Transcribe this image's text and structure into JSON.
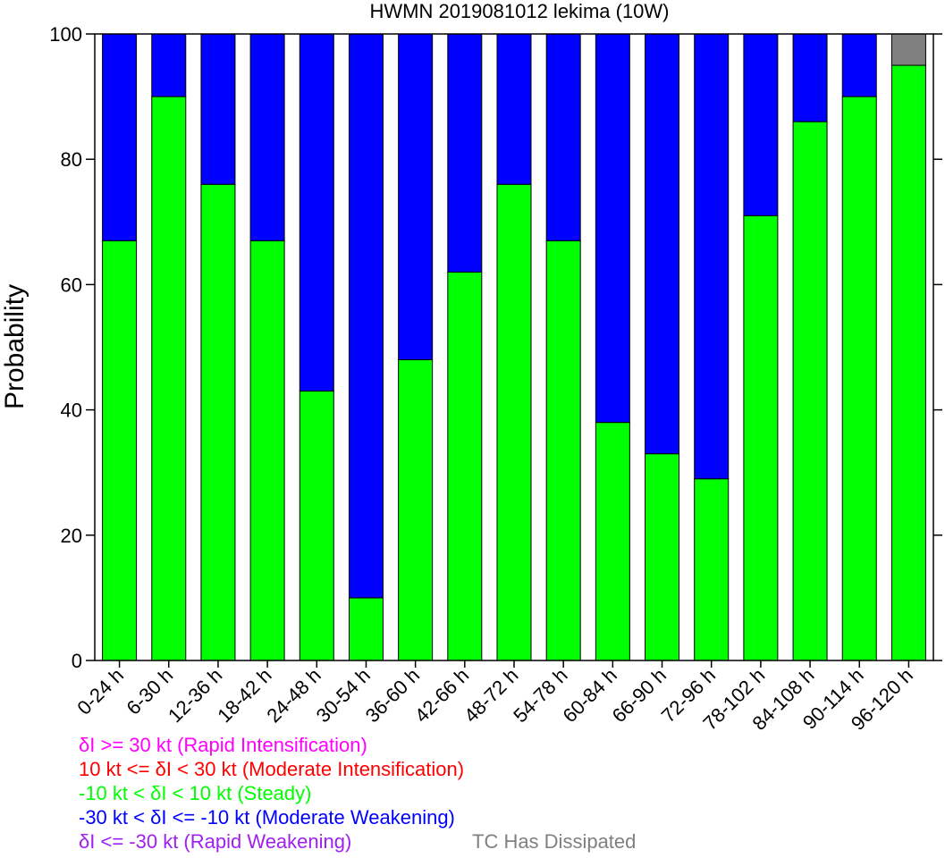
{
  "chart_data": {
    "type": "bar",
    "stacked": true,
    "title": "HWMN 2019081012 lekima (10W)",
    "ylabel": "Probability",
    "xlabel": "",
    "ylim": [
      0,
      100
    ],
    "yticks": [
      0,
      20,
      40,
      60,
      80,
      100
    ],
    "categories": [
      "0-24 h",
      "6-30 h",
      "12-36 h",
      "18-42 h",
      "24-48 h",
      "30-54 h",
      "36-60 h",
      "42-66 h",
      "48-72 h",
      "54-78 h",
      "60-84 h",
      "66-90 h",
      "72-96 h",
      "78-102 h",
      "84-108 h",
      "90-114 h",
      "96-120 h"
    ],
    "series": [
      {
        "name": "-10 kt < δI < 10 kt (Steady)",
        "color": "#00ff00",
        "values": [
          67,
          90,
          76,
          67,
          43,
          10,
          48,
          62,
          76,
          67,
          38,
          33,
          29,
          71,
          86,
          90,
          95
        ]
      },
      {
        "name": "-30 kt < δI <= -10 kt (Moderate Weakening)",
        "color": "#0000ff",
        "values": [
          33,
          10,
          24,
          33,
          57,
          90,
          52,
          38,
          24,
          33,
          62,
          67,
          71,
          29,
          14,
          10,
          0
        ]
      },
      {
        "name": "TC Has Dissipated",
        "color": "#808080",
        "values": [
          0,
          0,
          0,
          0,
          0,
          0,
          0,
          0,
          0,
          0,
          0,
          0,
          0,
          0,
          0,
          0,
          5
        ]
      }
    ],
    "legend_placement": "bottom",
    "grid": false
  },
  "legend": {
    "rapid_intensification": {
      "label": "δI >= 30 kt (Rapid Intensification)",
      "color": "#ff00ff"
    },
    "moderate_intensification": {
      "label": "10 kt <= δI < 30 kt (Moderate Intensification)",
      "color": "#ff0000"
    },
    "steady": {
      "label": "-10 kt < δI < 10 kt (Steady)",
      "color": "#00ff00"
    },
    "moderate_weakening": {
      "label": "-30 kt < δI <= -10 kt (Moderate Weakening)",
      "color": "#0000ff"
    },
    "rapid_weakening": {
      "label": "δI <= -30 kt (Rapid Weakening)",
      "color": "#a020f0"
    },
    "dissipated": {
      "label": "TC Has Dissipated",
      "color": "#808080"
    }
  }
}
